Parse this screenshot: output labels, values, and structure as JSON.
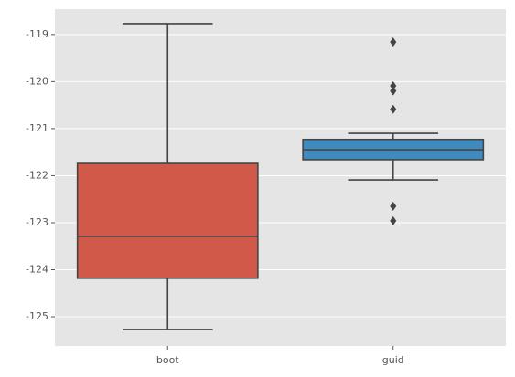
{
  "chart_data": {
    "type": "box",
    "categories": [
      "boot",
      "guid"
    ],
    "boxes": [
      {
        "whislo": -125.27,
        "q1": -124.18,
        "med": -123.29,
        "q3": -121.74,
        "whishi": -118.77,
        "fliers": [],
        "color": "#d0594a"
      },
      {
        "whislo": -122.09,
        "q1": -121.66,
        "med": -121.45,
        "q3": -121.23,
        "whishi": -121.1,
        "fliers": [
          -119.16,
          -120.09,
          -120.2,
          -120.59,
          -122.65,
          -122.96
        ],
        "color": "#3f8bbd"
      }
    ],
    "ylim": [
      -125.62,
      -118.46
    ],
    "yticks": [
      -125,
      -124,
      -123,
      -122,
      -121,
      -120,
      -119
    ],
    "grid": true
  }
}
